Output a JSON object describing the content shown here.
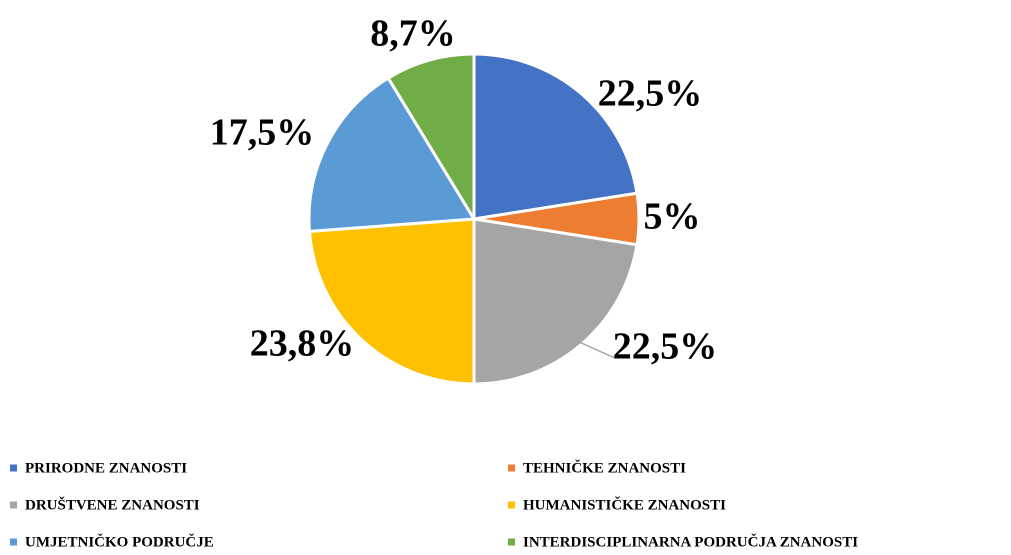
{
  "chart_data": {
    "type": "pie",
    "categories": [
      "PRIRODNE ZNANOSTI",
      "TEHNIČKE ZNANOSTI",
      "DRUŠTVENE ZNANOSTI",
      "HUMANISTIČKE ZNANOSTI",
      "UMJETNIČKO PODRUČJE",
      "INTERDISCIPLINARNA PODRUČJA ZNANOSTI"
    ],
    "values": [
      22.5,
      5,
      22.5,
      23.8,
      17.5,
      8.7
    ],
    "value_labels": [
      "22,5%",
      "5%",
      "22,5%",
      "23,8%",
      "17,5%",
      "8,7%"
    ],
    "colors": [
      "#4472c4",
      "#ed7d31",
      "#a5a5a5",
      "#ffc000",
      "#5b9bd5",
      "#70ad47"
    ],
    "legend": "bottom"
  }
}
